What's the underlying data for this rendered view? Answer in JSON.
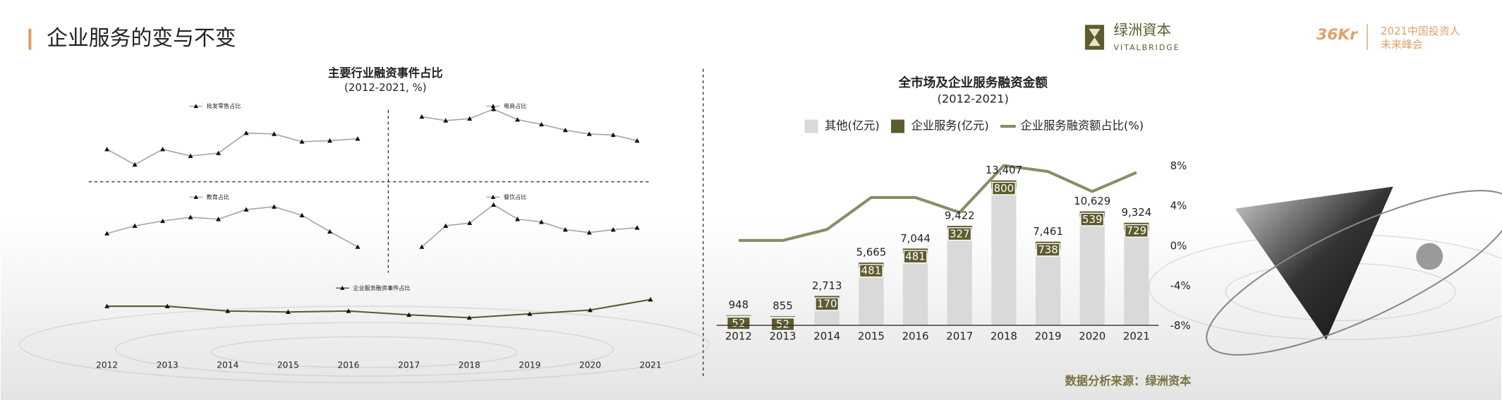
{
  "page": {
    "title": "企业服务的变与不变",
    "logo_cn": "绿洲資本",
    "logo_en": "VITALBRIDGE",
    "event_logo": "36Kr",
    "event_line1": "2021中国投资人",
    "event_line2": "未来峰会",
    "source": "数据分析来源：绿洲资本"
  },
  "chart_data": [
    {
      "type": "line",
      "title": "主要行业融资事件占比",
      "subtitle": "(2012-2021, %)",
      "categories": [
        "2012",
        "2013",
        "2014",
        "2015",
        "2016",
        "2017",
        "2018",
        "2019",
        "2020",
        "2021"
      ],
      "ylim": [
        0,
        18
      ],
      "series": [
        {
          "name": "批发零售占比",
          "color": "#a6a6a6",
          "values": [
            6.8,
            3.6,
            6.8,
            5.4,
            6.0,
            10.2,
            10.0,
            8.4,
            8.6,
            9.0
          ]
        },
        {
          "name": "电商占比",
          "color": "#a6a6a6",
          "values": [
            13.6,
            12.8,
            13.2,
            15.2,
            13.0,
            12.0,
            10.8,
            10.0,
            9.8,
            8.6
          ]
        },
        {
          "name": "教育占比",
          "color": "#a6a6a6",
          "values": [
            8.2,
            9.8,
            10.8,
            11.6,
            11.2,
            13.2,
            13.8,
            12.0,
            8.6,
            5.4
          ]
        },
        {
          "name": "餐饮占比",
          "color": "#a6a6a6",
          "values": [
            5.4,
            9.8,
            10.4,
            14.2,
            11.2,
            10.6,
            9.0,
            8.4,
            9.0,
            9.4
          ]
        },
        {
          "name": "企业服务融资事件占比",
          "color": "#5a5a2a",
          "values": [
            12,
            12,
            11,
            10.8,
            11,
            10.2,
            9.6,
            10.4,
            11.2,
            13.4
          ]
        }
      ]
    },
    {
      "type": "bar",
      "title": "全市场及企业服务融资金额",
      "subtitle": "(2012-2021)",
      "categories": [
        "2012",
        "2013",
        "2014",
        "2015",
        "2016",
        "2017",
        "2018",
        "2019",
        "2020",
        "2021"
      ],
      "ylim": [
        0,
        15000
      ],
      "y2lim": [
        -8,
        8
      ],
      "y2ticks": [
        {
          "value": 8,
          "label": "8%"
        },
        {
          "value": 4,
          "label": "4%"
        },
        {
          "value": 0,
          "label": "0%"
        },
        {
          "value": -4,
          "label": "-4%"
        },
        {
          "value": -8,
          "label": "-8%"
        }
      ],
      "series": [
        {
          "name": "其他(亿元)",
          "color": "#d9d9d9",
          "values": [
            948,
            855,
            2713,
            5665,
            7044,
            9422,
            13407,
            7461,
            10629,
            9324
          ],
          "value_labels": [
            "948",
            "855",
            "2,713",
            "5,665",
            "7,044",
            "9,422",
            "13,407",
            "7,461",
            "10,629",
            "9,324"
          ]
        },
        {
          "name": "企业服务(亿元)",
          "color": "#5e5b2e",
          "values": [
            52,
            52,
            170,
            481,
            481,
            327,
            800,
            738,
            539,
            729
          ]
        },
        {
          "name": "企业服务融资额占比(%)",
          "type": "line",
          "axis": "y2",
          "color": "#8c8a68",
          "values": [
            0.6,
            0.6,
            1.7,
            4.9,
            4.9,
            3.4,
            8.1,
            7.5,
            5.5,
            7.4
          ]
        }
      ]
    }
  ]
}
